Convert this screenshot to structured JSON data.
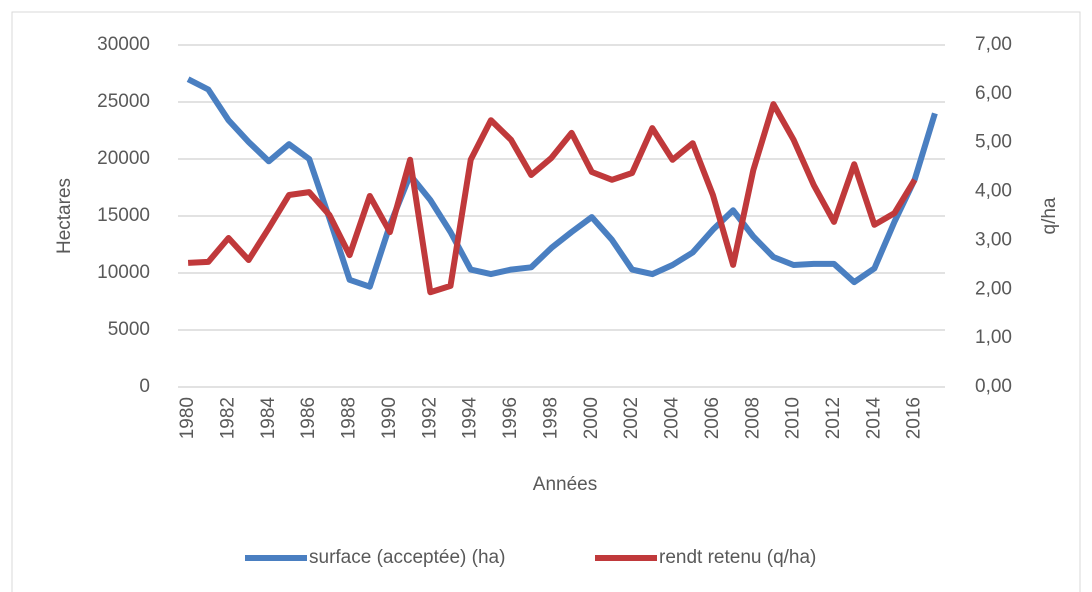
{
  "chart_data": {
    "type": "line",
    "x_label": "Années",
    "y_label": "Hectares",
    "y2_label": "q/ha",
    "categories": [
      "1980",
      null,
      "1982",
      null,
      "1984",
      null,
      "1986",
      null,
      "1988",
      null,
      "1990",
      null,
      "1992",
      null,
      "1994",
      null,
      "1996",
      null,
      "1998",
      null,
      "2000",
      null,
      "2002",
      null,
      "2004",
      null,
      "2006",
      null,
      "2008",
      null,
      "2010",
      null,
      "2012",
      null,
      "2014",
      null,
      "2016",
      null
    ],
    "series": [
      {
        "name": "surface (acceptée) (ha)",
        "color": "#4a7fc1",
        "values": [
          27000,
          26100,
          23400,
          21500,
          19800,
          21300,
          20000,
          14800,
          9400,
          8800,
          14200,
          18600,
          16400,
          13600,
          10300,
          9900,
          10300,
          10500,
          12200,
          13600,
          14900,
          12900,
          10300,
          9900,
          10700,
          11800,
          13800,
          15500,
          13200,
          11400,
          10700,
          10800,
          10800,
          9200,
          10400,
          14500,
          18200,
          24000
        ]
      },
      {
        "name": "rendt retenu (q/ha)",
        "color": "#c0393b",
        "axis": "y2",
        "values": [
          2.54,
          2.56,
          3.05,
          2.6,
          3.25,
          3.93,
          3.99,
          3.52,
          2.7,
          3.91,
          3.17,
          4.65,
          1.94,
          2.07,
          4.65,
          5.46,
          5.06,
          4.34,
          4.69,
          5.2,
          4.4,
          4.24,
          4.38,
          5.3,
          4.65,
          4.99,
          3.93,
          2.5,
          4.44,
          5.79,
          5.06,
          4.13,
          3.38,
          4.56,
          3.32,
          3.56,
          4.24,
          null
        ]
      }
    ],
    "ylim": [
      0,
      30000
    ],
    "yticks": [
      0,
      5000,
      10000,
      15000,
      20000,
      25000,
      30000
    ],
    "y2lim": [
      0,
      7
    ],
    "y2ticks": [
      {
        "value": 0,
        "label": "0,00"
      },
      {
        "value": 1,
        "label": "1,00"
      },
      {
        "value": 2,
        "label": "2,00"
      },
      {
        "value": 3,
        "label": "3,00"
      },
      {
        "value": 4,
        "label": "4,00"
      },
      {
        "value": 5,
        "label": "5,00"
      },
      {
        "value": 6,
        "label": "6,00"
      },
      {
        "value": 7,
        "label": "7,00"
      }
    ],
    "grid": true,
    "legend": "bottom"
  }
}
